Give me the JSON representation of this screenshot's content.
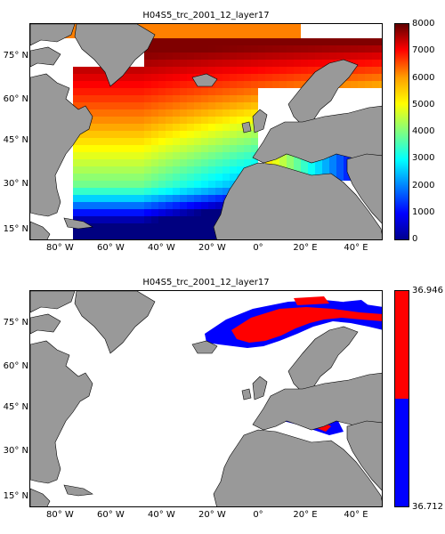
{
  "panels": [
    {
      "title": "H04S5_trc_2001_12_layer17",
      "colorbar": {
        "colormap": "jet",
        "ticks": [
          "8000",
          "7000",
          "6000",
          "5000",
          "4000",
          "3000",
          "2000",
          "1000",
          "0"
        ],
        "range": [
          0,
          8000
        ]
      }
    },
    {
      "title": "H04S5_trc_2001_12_layer17",
      "colorbar": {
        "colormap": "two-color",
        "colors": [
          "#ff0000",
          "#0000ff"
        ],
        "max_label": "36.946",
        "min_label": "36.712"
      }
    }
  ],
  "axes": {
    "y_ticks": [
      "75° N",
      "60° N",
      "45° N",
      "30° N",
      "15° N"
    ],
    "x_ticks": [
      "80° W",
      "60° W",
      "40° W",
      "20° W",
      "0°",
      "20° E",
      "40° E"
    ]
  },
  "colors": {
    "land": "#999999",
    "ocean_no_data": "#ffffff",
    "frame": "#000000"
  }
}
